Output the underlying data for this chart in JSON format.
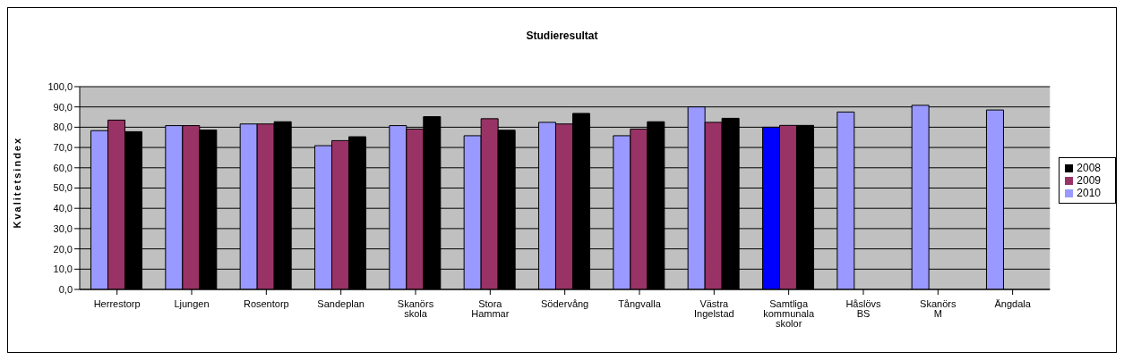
{
  "chart_data": {
    "type": "bar",
    "title": "Studieresultat",
    "ylabel": "Kvalitetsindex",
    "categories": [
      "Herrestorp",
      "Ljungen",
      "Rosentorp",
      "Sandeplan",
      "Skanörs skola",
      "Stora Hammar",
      "Södervång",
      "Tångvalla",
      "Västra Ingelstad",
      "Samtliga kommunala skolor",
      "Håslövs BS",
      "Skanörs M",
      "Ängdala"
    ],
    "series": [
      {
        "name": "2010",
        "color": "#9999ff",
        "colors": [
          "#9999ff",
          "#9999ff",
          "#9999ff",
          "#9999ff",
          "#9999ff",
          "#9999ff",
          "#9999ff",
          "#9999ff",
          "#9999ff",
          "#0000ff",
          "#9999ff",
          "#9999ff",
          "#9999ff"
        ],
        "values": [
          78.3,
          80.8,
          81.6,
          70.9,
          80.8,
          75.8,
          82.4,
          75.8,
          90.0,
          80.0,
          87.5,
          90.8,
          88.5
        ]
      },
      {
        "name": "2009",
        "color": "#993366",
        "values": [
          83.5,
          80.8,
          81.6,
          73.4,
          79.1,
          84.2,
          81.6,
          79.1,
          82.4,
          80.9,
          null,
          null,
          null
        ]
      },
      {
        "name": "2008",
        "color": "#000000",
        "values": [
          77.8,
          78.6,
          82.7,
          75.3,
          85.2,
          78.5,
          86.8,
          82.7,
          84.4,
          80.9,
          null,
          null,
          null
        ]
      }
    ],
    "ylim": [
      0,
      100
    ],
    "yticks": [
      {
        "value": 0,
        "label": "0,0"
      },
      {
        "value": 10,
        "label": "10,0"
      },
      {
        "value": 20,
        "label": "20,0"
      },
      {
        "value": 30,
        "label": "30,0"
      },
      {
        "value": 40,
        "label": "40,0"
      },
      {
        "value": 50,
        "label": "50,0"
      },
      {
        "value": 60,
        "label": "60,0"
      },
      {
        "value": 70,
        "label": "70,0"
      },
      {
        "value": 80,
        "label": "80,0"
      },
      {
        "value": 90,
        "label": "90,0"
      },
      {
        "value": 100,
        "label": "100,0"
      }
    ],
    "grid": "y",
    "legend": "right"
  }
}
